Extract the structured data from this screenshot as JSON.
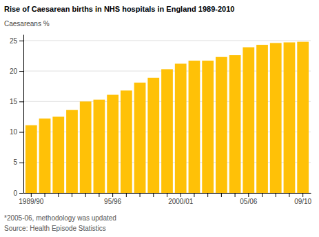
{
  "chart_data": {
    "type": "bar",
    "title": "Rise of Caesarean births in NHS hospitals in England 1989-2010",
    "ylabel": "Caesareans %",
    "annotations": [
      "*2005-06, methodology was updated",
      "Source: Health Episode Statistics"
    ],
    "categories": [
      "1989/90",
      null,
      null,
      null,
      null,
      null,
      "95/96",
      null,
      null,
      null,
      null,
      "2000/01",
      null,
      null,
      null,
      null,
      "05/06",
      null,
      null,
      null,
      "09/10"
    ],
    "values": [
      11.1,
      12.2,
      12.5,
      13.6,
      15.0,
      15.3,
      16.1,
      16.8,
      18.1,
      18.9,
      20.3,
      21.2,
      21.7,
      21.7,
      22.3,
      22.6,
      23.9,
      24.3,
      24.6,
      24.7,
      24.8
    ],
    "color": "#FFC107",
    "ylim": [
      0,
      26
    ],
    "yticks": [
      0,
      5,
      10,
      15,
      20,
      25
    ],
    "grid": true
  }
}
